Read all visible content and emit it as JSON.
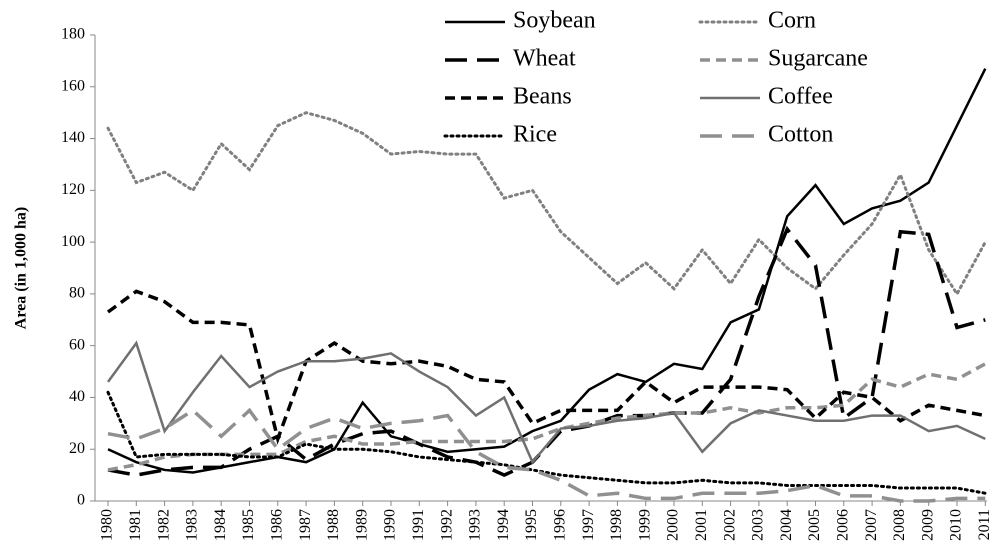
{
  "chart_data": {
    "type": "line",
    "y_axis_label": "Area  (in 1,000 ha)",
    "categories": [
      "1980",
      "1981",
      "1982",
      "1983",
      "1984",
      "1985",
      "1986",
      "1987",
      "1988",
      "1989",
      "1990",
      "1991",
      "1992",
      "1993",
      "1994",
      "1995",
      "1996",
      "1997",
      "1998",
      "1999",
      "2000",
      "2001",
      "2002",
      "2003",
      "2004",
      "2005",
      "2006",
      "2007",
      "2008",
      "2009",
      "2010",
      "2011"
    ],
    "ylim": [
      0,
      180
    ],
    "yticks": [
      0,
      20,
      40,
      60,
      80,
      100,
      120,
      140,
      160,
      180
    ],
    "grid": false,
    "legend": "top-right",
    "series": [
      {
        "name": "Soybean",
        "color": "#000000",
        "style": "solid",
        "values": [
          20,
          15,
          12,
          11,
          13,
          15,
          17,
          15,
          20,
          38,
          25,
          22,
          19,
          20,
          21,
          27,
          31,
          43,
          49,
          46,
          53,
          51,
          69,
          74,
          110,
          122,
          107,
          113,
          116,
          123,
          145,
          167
        ]
      },
      {
        "name": "Corn",
        "color": "#808080",
        "style": "dotted",
        "values": [
          144,
          123,
          127,
          120,
          138,
          128,
          145,
          150,
          147,
          142,
          134,
          135,
          134,
          134,
          117,
          120,
          104,
          94,
          84,
          92,
          82,
          97,
          84,
          101,
          90,
          82,
          95,
          107,
          126,
          97,
          80,
          100
        ]
      },
      {
        "name": "Wheat",
        "color": "#000000",
        "style": "longdash",
        "values": [
          12,
          10,
          12,
          13,
          13,
          20,
          25,
          16,
          22,
          26,
          27,
          22,
          17,
          15,
          10,
          15,
          27,
          29,
          33,
          33,
          34,
          34,
          47,
          79,
          105,
          91,
          32,
          40,
          104,
          103,
          67,
          70
        ]
      },
      {
        "name": "Sugarcane",
        "color": "#909090",
        "style": "dashed",
        "values": [
          12,
          14,
          17,
          18,
          18,
          18,
          18,
          23,
          25,
          22,
          22,
          23,
          23,
          23,
          23,
          24,
          28,
          30,
          32,
          33,
          34,
          34,
          36,
          34,
          36,
          36,
          37,
          47,
          44,
          49,
          47,
          53
        ]
      },
      {
        "name": "Beans",
        "color": "#000000",
        "style": "dashed",
        "values": [
          73,
          81,
          77,
          69,
          69,
          68,
          24,
          54,
          61,
          54,
          53,
          54,
          52,
          47,
          46,
          30,
          35,
          35,
          35,
          46,
          38,
          44,
          44,
          44,
          43,
          32,
          42,
          40,
          31,
          37,
          35,
          33
        ]
      },
      {
        "name": "Coffee",
        "color": "#707070",
        "style": "solid",
        "values": [
          46,
          61,
          27,
          42,
          56,
          44,
          50,
          54,
          54,
          55,
          57,
          50,
          44,
          33,
          40,
          15,
          28,
          29,
          31,
          32,
          34,
          19,
          30,
          35,
          33,
          31,
          31,
          33,
          33,
          27,
          29,
          24
        ]
      },
      {
        "name": "Rice",
        "color": "#000000",
        "style": "dotted",
        "values": [
          42,
          17,
          18,
          18,
          18,
          17,
          17,
          22,
          20,
          20,
          19,
          17,
          16,
          15,
          14,
          12,
          10,
          9,
          8,
          7,
          7,
          8,
          7,
          7,
          6,
          6,
          6,
          6,
          5,
          5,
          5,
          3
        ]
      },
      {
        "name": "Cotton",
        "color": "#909090",
        "style": "longdash",
        "values": [
          26,
          24,
          28,
          35,
          25,
          35,
          20,
          28,
          32,
          28,
          30,
          31,
          33,
          19,
          13,
          12,
          8,
          2,
          3,
          1,
          1,
          3,
          3,
          3,
          4,
          6,
          2,
          2,
          0,
          0,
          1,
          1
        ]
      }
    ]
  }
}
